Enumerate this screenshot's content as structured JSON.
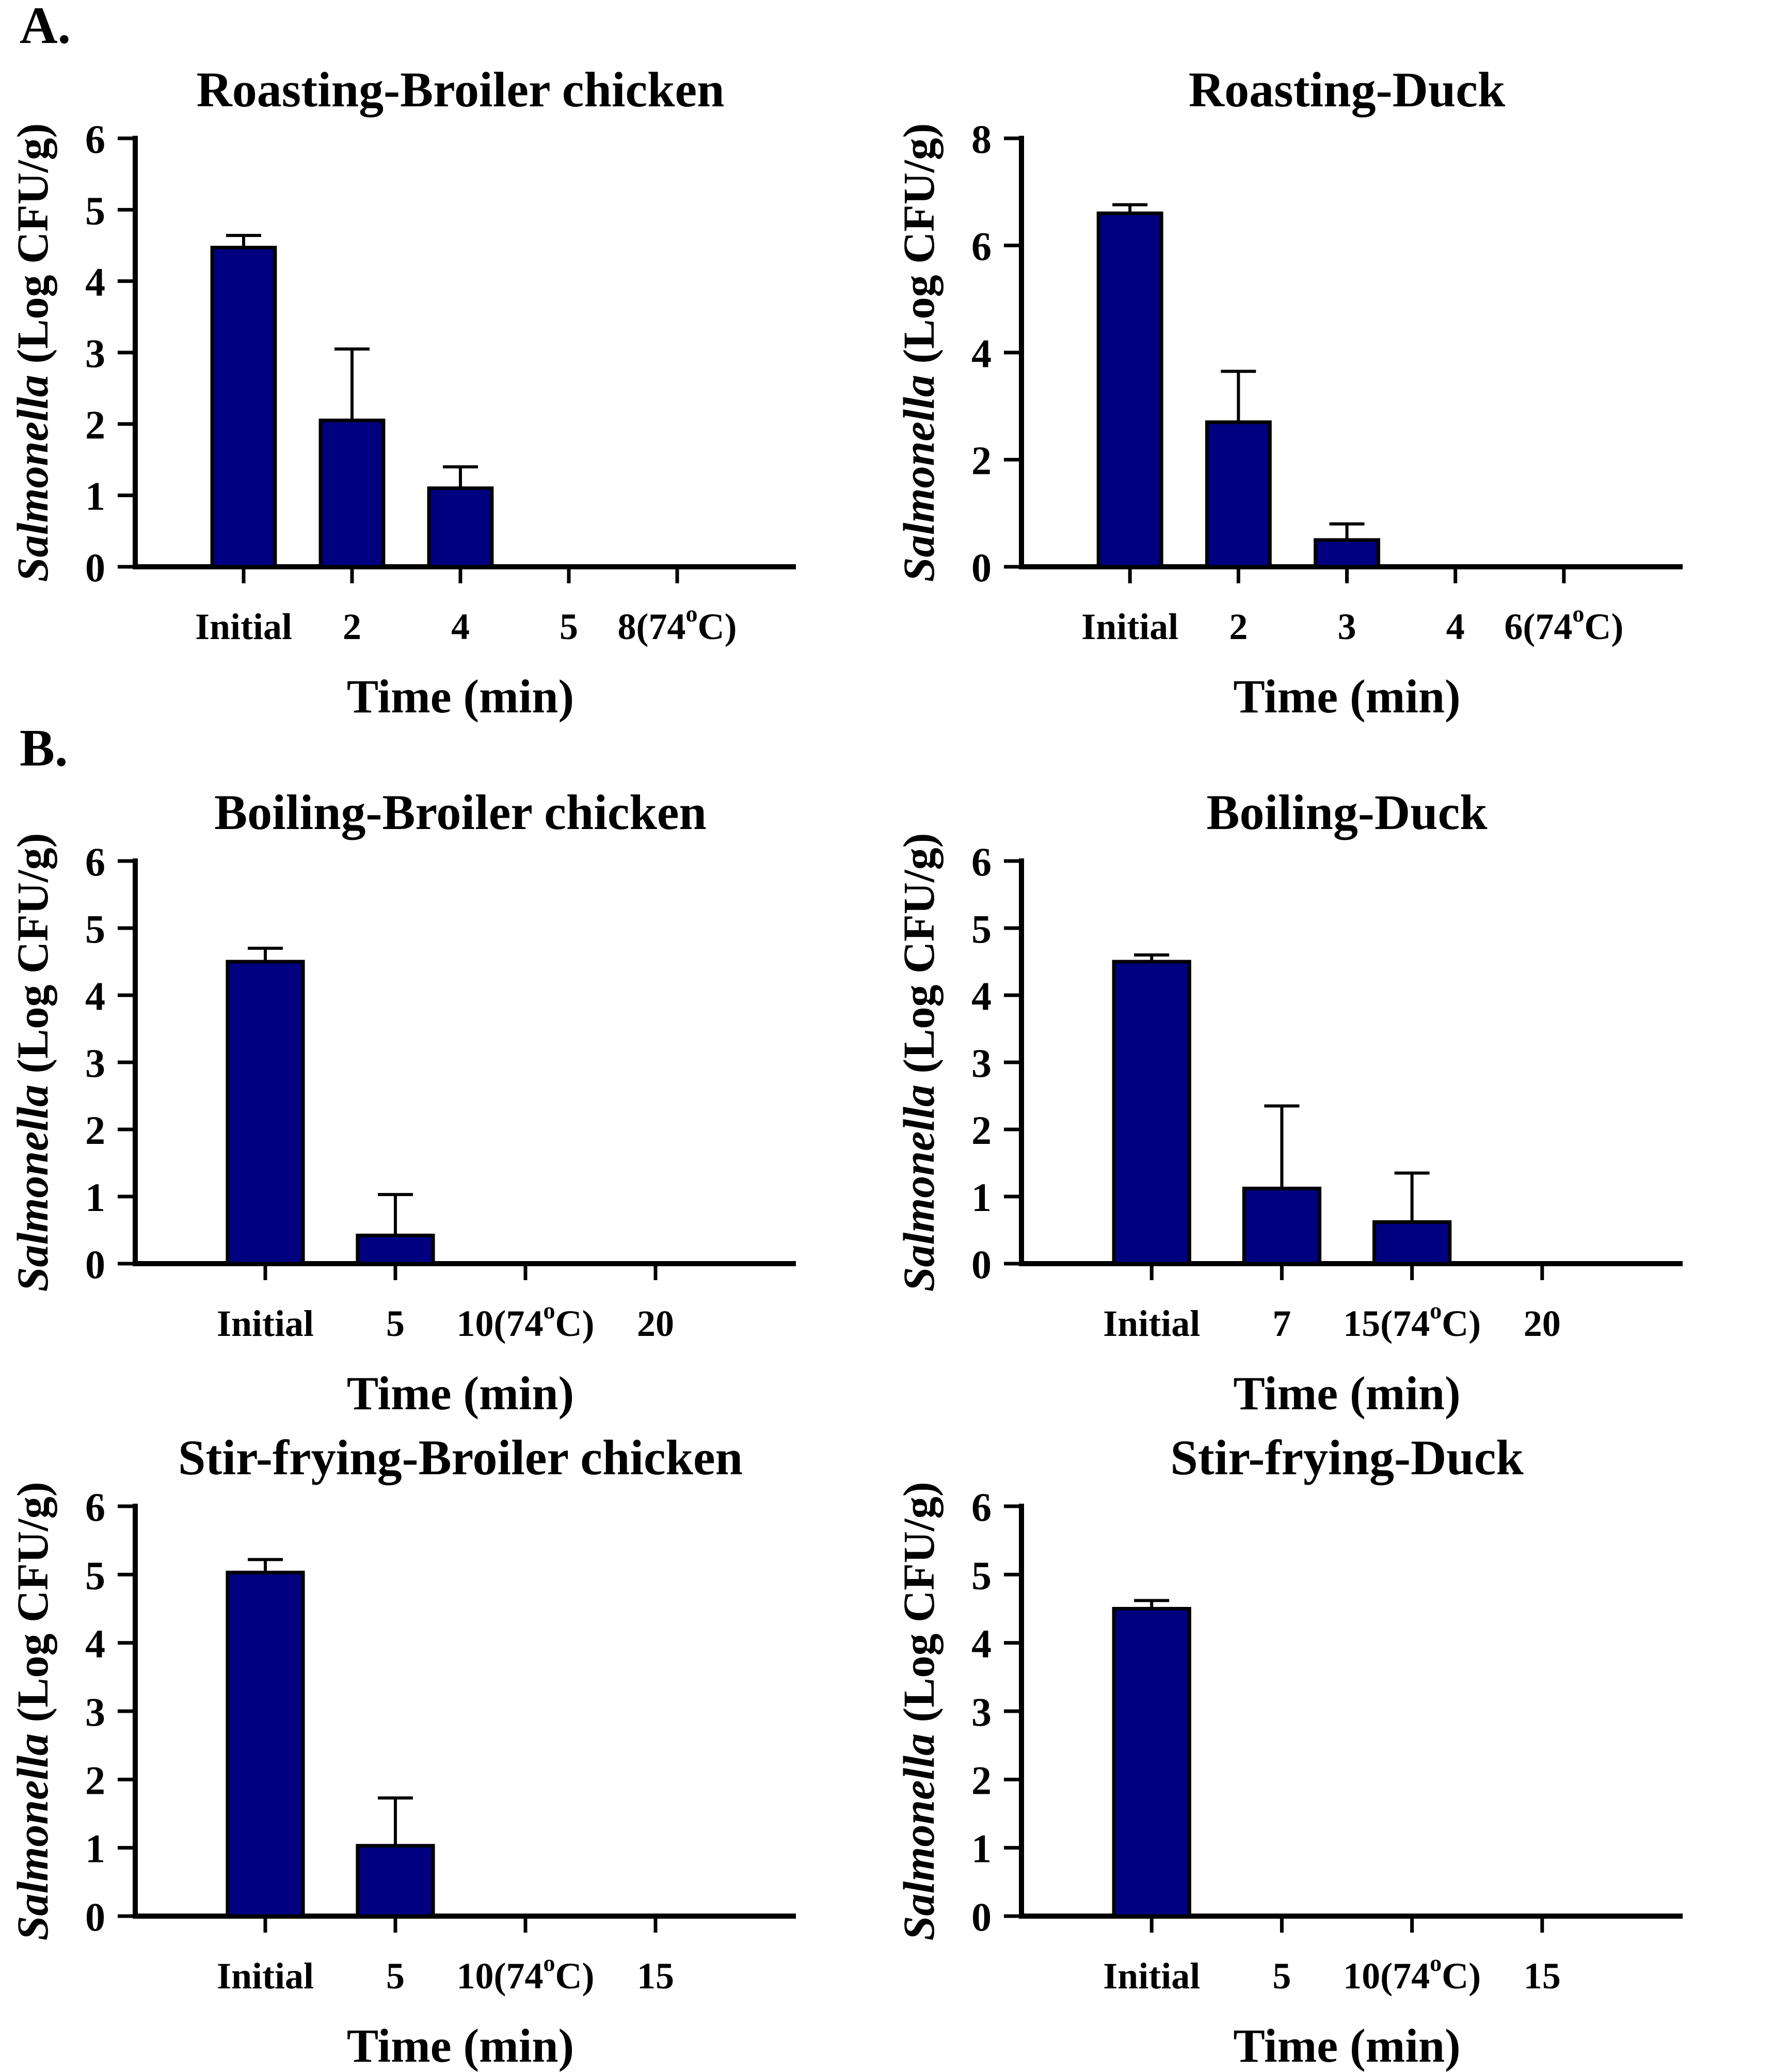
{
  "figure": {
    "background": "#ffffff",
    "bar_color": "#000080",
    "axis_color": "#000000",
    "panels": [
      {
        "label": "A."
      },
      {
        "label": "B."
      }
    ],
    "ylabel": {
      "italic": "Salmonella",
      "rest": " (Log CFU/g)"
    }
  },
  "chart_data": [
    {
      "type": "bar",
      "title": "Roasting-Broiler chicken",
      "xlabel": "Time (min)",
      "ylabel": "Salmonella (Log CFU/g)",
      "ymax": 6,
      "ylim": [
        0,
        6
      ],
      "yticks": [
        0,
        1,
        2,
        3,
        4,
        5,
        6
      ],
      "categories": [
        "Initial",
        "2",
        "4",
        "5",
        "8(74°C)"
      ],
      "values": [
        4.47,
        2.05,
        1.1,
        0,
        0
      ],
      "errors": [
        0.17,
        1.0,
        0.3,
        0,
        0
      ]
    },
    {
      "type": "bar",
      "title": "Roasting-Duck",
      "xlabel": "Time (min)",
      "ylabel": "Salmonella (Log CFU/g)",
      "ymax": 8,
      "ylim": [
        0,
        8
      ],
      "yticks": [
        0,
        2,
        4,
        6,
        8
      ],
      "categories": [
        "Initial",
        "2",
        "3",
        "4",
        "6(74°C)"
      ],
      "values": [
        6.6,
        2.7,
        0.5,
        0,
        0
      ],
      "errors": [
        0.16,
        0.95,
        0.3,
        0,
        0
      ]
    },
    {
      "type": "bar",
      "title": "Boiling-Broiler chicken",
      "xlabel": "Time (min)",
      "ylabel": "Salmonella (Log CFU/g)",
      "ymax": 6,
      "ylim": [
        0,
        6
      ],
      "yticks": [
        0,
        1,
        2,
        3,
        4,
        5,
        6
      ],
      "categories": [
        "Initial",
        "5",
        "10(74°C)",
        "20"
      ],
      "values": [
        4.5,
        0.42,
        0,
        0
      ],
      "errors": [
        0.2,
        0.61,
        0,
        0
      ]
    },
    {
      "type": "bar",
      "title": "Boiling-Duck",
      "xlabel": "Time (min)",
      "ylabel": "Salmonella (Log CFU/g)",
      "ymax": 6,
      "ylim": [
        0,
        6
      ],
      "yticks": [
        0,
        1,
        2,
        3,
        4,
        5,
        6
      ],
      "categories": [
        "Initial",
        "7",
        "15(74°C)",
        "20"
      ],
      "values": [
        4.5,
        1.12,
        0.62,
        0
      ],
      "errors": [
        0.1,
        1.23,
        0.73,
        0
      ]
    },
    {
      "type": "bar",
      "title": "Stir-frying-Broiler chicken",
      "xlabel": "Time (min)",
      "ylabel": "Salmonella (Log CFU/g)",
      "ymax": 6,
      "ylim": [
        0,
        6
      ],
      "yticks": [
        0,
        1,
        2,
        3,
        4,
        5,
        6
      ],
      "categories": [
        "Initial",
        "5",
        "10(74°C)",
        "15"
      ],
      "values": [
        5.03,
        1.03,
        0,
        0
      ],
      "errors": [
        0.19,
        0.7,
        0,
        0
      ]
    },
    {
      "type": "bar",
      "title": "Stir-frying-Duck",
      "xlabel": "Time (min)",
      "ylabel": "Salmonella (Log CFU/g)",
      "ymax": 6,
      "ylim": [
        0,
        6
      ],
      "yticks": [
        0,
        1,
        2,
        3,
        4,
        5,
        6
      ],
      "categories": [
        "Initial",
        "5",
        "10(74°C)",
        "15"
      ],
      "values": [
        4.5,
        0,
        0,
        0
      ],
      "errors": [
        0.12,
        0,
        0,
        0
      ]
    }
  ]
}
